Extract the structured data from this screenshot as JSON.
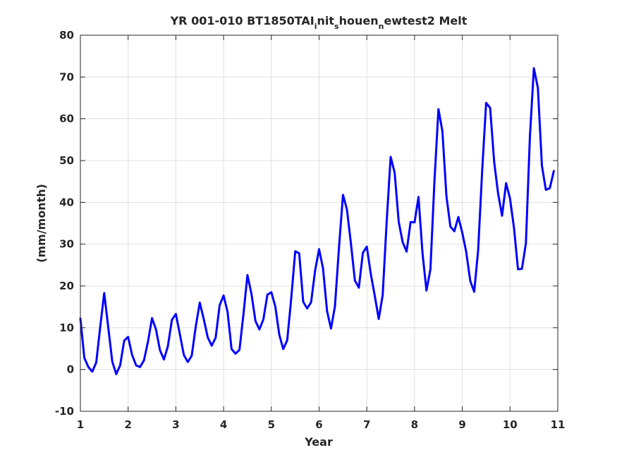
{
  "chart_data": {
    "type": "line",
    "title_parts": [
      {
        "text": "YR 001-010 BT1850TAI",
        "pos": "normal"
      },
      {
        "text": "i",
        "pos": "sub"
      },
      {
        "text": "nit",
        "pos": "normal"
      },
      {
        "text": "s",
        "pos": "sub"
      },
      {
        "text": "houen",
        "pos": "normal"
      },
      {
        "text": "n",
        "pos": "sub"
      },
      {
        "text": "ewtest2 Melt",
        "pos": "normal"
      }
    ],
    "xlabel": "Year",
    "ylabel": "(mm/month)",
    "xlim": [
      1,
      11
    ],
    "ylim": [
      -10,
      80
    ],
    "xticks": [
      1,
      2,
      3,
      4,
      5,
      6,
      7,
      8,
      9,
      10,
      11
    ],
    "yticks": [
      -10,
      0,
      10,
      20,
      30,
      40,
      50,
      60,
      70,
      80
    ],
    "grid": true,
    "series": [
      {
        "color": "#0000ff",
        "x": [
          1.0,
          1.083,
          1.167,
          1.25,
          1.333,
          1.417,
          1.5,
          1.583,
          1.667,
          1.75,
          1.833,
          1.917,
          2.0,
          2.083,
          2.167,
          2.25,
          2.333,
          2.417,
          2.5,
          2.583,
          2.667,
          2.75,
          2.833,
          2.917,
          3.0,
          3.083,
          3.167,
          3.25,
          3.333,
          3.417,
          3.5,
          3.583,
          3.667,
          3.75,
          3.833,
          3.917,
          4.0,
          4.083,
          4.167,
          4.25,
          4.333,
          4.417,
          4.5,
          4.583,
          4.667,
          4.75,
          4.833,
          4.917,
          5.0,
          5.083,
          5.167,
          5.25,
          5.333,
          5.417,
          5.5,
          5.583,
          5.667,
          5.75,
          5.833,
          5.917,
          6.0,
          6.083,
          6.167,
          6.25,
          6.333,
          6.417,
          6.5,
          6.583,
          6.667,
          6.75,
          6.833,
          6.917,
          7.0,
          7.083,
          7.167,
          7.25,
          7.333,
          7.417,
          7.5,
          7.583,
          7.667,
          7.75,
          7.833,
          7.917,
          8.0,
          8.083,
          8.167,
          8.25,
          8.333,
          8.417,
          8.5,
          8.583,
          8.667,
          8.75,
          8.833,
          8.917,
          9.0,
          9.083,
          9.167,
          9.25,
          9.333,
          9.417,
          9.5,
          9.583,
          9.667,
          9.75,
          9.833,
          9.917,
          10.0,
          10.083,
          10.167,
          10.25,
          10.333,
          10.417,
          10.5,
          10.583,
          10.667,
          10.75,
          10.833,
          10.917
        ],
        "y": [
          12.2,
          2.8,
          0.6,
          -0.5,
          1.7,
          10.3,
          18.3,
          10.1,
          1.9,
          -1.1,
          1.0,
          6.9,
          7.8,
          3.5,
          1.0,
          0.6,
          2.2,
          6.7,
          12.3,
          9.6,
          4.6,
          2.4,
          5.6,
          11.9,
          13.3,
          8.5,
          3.5,
          1.8,
          3.3,
          10.3,
          16.0,
          12.1,
          7.7,
          5.7,
          7.6,
          15.4,
          17.7,
          13.8,
          4.9,
          3.8,
          4.7,
          13.3,
          22.6,
          18.1,
          11.6,
          9.6,
          12.0,
          17.9,
          18.5,
          15.1,
          8.3,
          4.9,
          7.0,
          17.0,
          28.3,
          27.8,
          16.2,
          14.6,
          16.1,
          23.7,
          28.8,
          24.2,
          14.0,
          9.8,
          15.1,
          29.1,
          41.8,
          38.3,
          30.1,
          21.3,
          19.6,
          27.9,
          29.4,
          22.9,
          17.6,
          12.1,
          17.8,
          35.5,
          50.9,
          47.1,
          35.4,
          30.5,
          28.2,
          35.3,
          35.2,
          41.3,
          27.8,
          18.9,
          24.0,
          45.0,
          62.3,
          57.0,
          41.5,
          34.2,
          33.1,
          36.5,
          32.7,
          28.1,
          21.2,
          18.6,
          28.6,
          47.6,
          63.8,
          62.6,
          49.7,
          42.1,
          36.8,
          44.6,
          40.9,
          33.9,
          24.0,
          24.1,
          30.2,
          55.8,
          72.1,
          67.4,
          48.8,
          43.0,
          43.4,
          47.5
        ]
      }
    ]
  }
}
